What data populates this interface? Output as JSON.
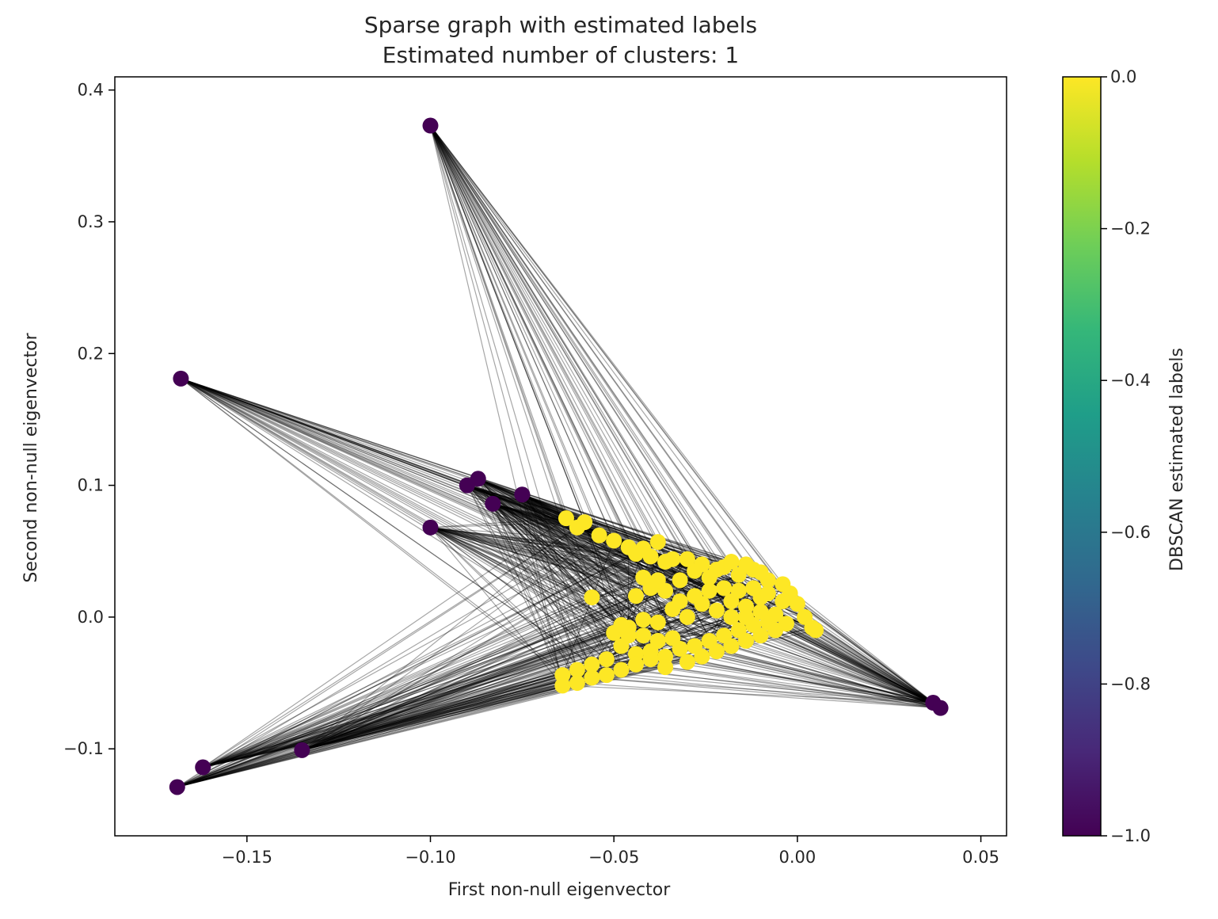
{
  "chart_data": {
    "type": "scatter",
    "title": "Sparse graph with estimated labels",
    "subtitle": "Estimated number of clusters: 1",
    "xlabel": "First non-null eigenvector",
    "ylabel": "Second non-null eigenvector",
    "xlim": [
      -0.186,
      0.057
    ],
    "ylim": [
      -0.166,
      0.41
    ],
    "x_ticks": [
      -0.15,
      -0.1,
      -0.05,
      0.0,
      0.05
    ],
    "x_tick_labels": [
      "−0.15",
      "−0.10",
      "−0.05",
      "0.00",
      "0.05"
    ],
    "y_ticks": [
      -0.1,
      0.0,
      0.1,
      0.2,
      0.3,
      0.4
    ],
    "y_tick_labels": [
      "−0.1",
      "0.0",
      "0.1",
      "0.2",
      "0.3",
      "0.4"
    ],
    "grid": false,
    "colorbar": {
      "label": "DBSCAN estimated labels",
      "colormap": "viridis",
      "range": [
        -1.0,
        0.0
      ],
      "ticks": [
        0.0,
        -0.2,
        -0.4,
        -0.6,
        -0.8,
        -1.0
      ],
      "tick_labels": [
        "0.0",
        "−0.2",
        "−0.4",
        "−0.6",
        "−0.8",
        "−1.0"
      ],
      "colors": [
        "#440154",
        "#482878",
        "#3e4989",
        "#31688e",
        "#26828e",
        "#1f9e89",
        "#35b779",
        "#6ece58",
        "#b5de2b",
        "#fde725"
      ]
    },
    "edge_color": "#000000",
    "series": [
      {
        "label_value": -1,
        "color": "#440154",
        "points": [
          [
            -0.1,
            0.373
          ],
          [
            -0.168,
            0.181
          ],
          [
            -0.087,
            0.105
          ],
          [
            -0.09,
            0.1
          ],
          [
            -0.075,
            0.093
          ],
          [
            -0.083,
            0.086
          ],
          [
            -0.1,
            0.068
          ],
          [
            -0.169,
            -0.129
          ],
          [
            -0.162,
            -0.114
          ],
          [
            -0.135,
            -0.101
          ],
          [
            0.037,
            -0.065
          ],
          [
            0.039,
            -0.069
          ]
        ]
      },
      {
        "label_value": 0,
        "color": "#fde725",
        "points": [
          [
            -0.063,
            0.075
          ],
          [
            -0.06,
            0.068
          ],
          [
            -0.058,
            0.072
          ],
          [
            -0.054,
            0.062
          ],
          [
            -0.05,
            0.058
          ],
          [
            -0.046,
            0.053
          ],
          [
            -0.044,
            0.048
          ],
          [
            -0.042,
            0.052
          ],
          [
            -0.04,
            0.046
          ],
          [
            -0.038,
            0.057
          ],
          [
            -0.036,
            0.042
          ],
          [
            -0.034,
            0.044
          ],
          [
            -0.056,
            0.015
          ],
          [
            -0.044,
            0.016
          ],
          [
            -0.04,
            0.022
          ],
          [
            -0.036,
            0.02
          ],
          [
            -0.032,
            0.028
          ],
          [
            -0.028,
            0.035
          ],
          [
            -0.024,
            0.03
          ],
          [
            -0.02,
            0.038
          ],
          [
            -0.016,
            0.032
          ],
          [
            -0.012,
            0.036
          ],
          [
            -0.008,
            0.028
          ],
          [
            -0.004,
            0.025
          ],
          [
            -0.002,
            0.018
          ],
          [
            0.0,
            0.01
          ],
          [
            0.002,
            0.0
          ],
          [
            0.004,
            -0.008
          ],
          [
            0.005,
            -0.01
          ],
          [
            -0.01,
            0.015
          ],
          [
            -0.014,
            0.008
          ],
          [
            -0.018,
            0.012
          ],
          [
            -0.022,
            0.005
          ],
          [
            -0.026,
            0.01
          ],
          [
            -0.03,
            0.0
          ],
          [
            -0.034,
            0.006
          ],
          [
            -0.038,
            -0.004
          ],
          [
            -0.042,
            -0.002
          ],
          [
            -0.046,
            -0.008
          ],
          [
            -0.05,
            -0.012
          ],
          [
            -0.046,
            -0.014
          ],
          [
            -0.048,
            -0.022
          ],
          [
            -0.044,
            -0.028
          ],
          [
            -0.04,
            -0.026
          ],
          [
            -0.036,
            -0.03
          ],
          [
            -0.032,
            -0.024
          ],
          [
            -0.028,
            -0.022
          ],
          [
            -0.024,
            -0.018
          ],
          [
            -0.02,
            -0.014
          ],
          [
            -0.016,
            -0.01
          ],
          [
            -0.012,
            -0.006
          ],
          [
            -0.008,
            -0.004
          ],
          [
            -0.052,
            -0.032
          ],
          [
            -0.056,
            -0.036
          ],
          [
            -0.06,
            -0.04
          ],
          [
            -0.064,
            -0.044
          ],
          [
            -0.064,
            -0.052
          ],
          [
            -0.06,
            -0.05
          ],
          [
            -0.056,
            -0.046
          ],
          [
            -0.052,
            -0.044
          ],
          [
            -0.048,
            -0.04
          ],
          [
            -0.044,
            -0.036
          ],
          [
            -0.04,
            -0.032
          ],
          [
            -0.036,
            -0.038
          ],
          [
            -0.03,
            -0.034
          ],
          [
            -0.026,
            -0.03
          ],
          [
            -0.022,
            -0.026
          ],
          [
            -0.018,
            -0.022
          ],
          [
            -0.014,
            -0.018
          ],
          [
            -0.01,
            -0.014
          ],
          [
            -0.006,
            -0.01
          ],
          [
            -0.003,
            -0.005
          ],
          [
            -0.024,
            0.02
          ],
          [
            -0.02,
            0.022
          ],
          [
            -0.016,
            0.02
          ],
          [
            -0.012,
            0.022
          ],
          [
            -0.008,
            0.018
          ],
          [
            -0.004,
            0.012
          ],
          [
            -0.018,
            0.0
          ],
          [
            -0.014,
            0.0
          ],
          [
            -0.01,
            0.004
          ],
          [
            -0.006,
            0.002
          ],
          [
            -0.028,
            0.016
          ],
          [
            -0.032,
            0.012
          ],
          [
            -0.03,
            0.044
          ],
          [
            -0.026,
            0.04
          ],
          [
            -0.022,
            0.036
          ],
          [
            -0.018,
            0.042
          ],
          [
            -0.014,
            0.04
          ],
          [
            -0.01,
            0.034
          ],
          [
            -0.038,
            0.028
          ],
          [
            -0.042,
            0.03
          ],
          [
            -0.034,
            -0.016
          ],
          [
            -0.038,
            -0.018
          ],
          [
            -0.042,
            -0.014
          ],
          [
            -0.048,
            -0.006
          ]
        ]
      }
    ]
  }
}
